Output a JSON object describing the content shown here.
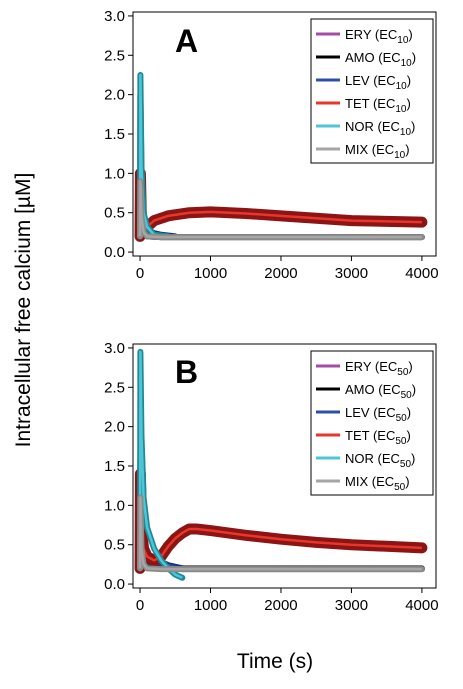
{
  "figure": {
    "ylabel": "Intracellular free calcium [µM]",
    "xlabel": "Time (s)"
  },
  "chart_data": [
    {
      "type": "line",
      "panel_label": "A",
      "xlim": [
        -100,
        4200
      ],
      "ylim": [
        -0.05,
        3.05
      ],
      "xticks": [
        0,
        1000,
        2000,
        3000,
        4000
      ],
      "yticks": [
        0.0,
        0.5,
        1.0,
        1.5,
        2.0,
        2.5,
        3.0
      ],
      "ytick_labels": [
        "0.0",
        "0.5",
        "1.0",
        "1.5",
        "2.0",
        "2.5",
        "3.0"
      ],
      "legend_position": "top-right",
      "grid": false,
      "series": [
        {
          "name": "ERY",
          "sub": "10",
          "color": "#a64ca6",
          "band": "#7a2a7a",
          "x": [
            0,
            5,
            20,
            50,
            100,
            300,
            1000,
            4000
          ],
          "y": [
            0.2,
            1.0,
            0.5,
            0.26,
            0.2,
            0.19,
            0.19,
            0.19
          ]
        },
        {
          "name": "AMO",
          "sub": "10",
          "color": "#000000",
          "band": "#333333",
          "x": [
            0,
            5,
            20,
            50,
            100,
            300,
            1000,
            4000
          ],
          "y": [
            0.2,
            1.0,
            0.5,
            0.26,
            0.2,
            0.19,
            0.19,
            0.19
          ]
        },
        {
          "name": "LEV",
          "sub": "10",
          "color": "#2f4ea8",
          "band": "#1f2f7a",
          "x": [
            0,
            5,
            20,
            50,
            100,
            200,
            300,
            500
          ],
          "y": [
            0.2,
            2.0,
            1.0,
            0.4,
            0.28,
            0.24,
            0.22,
            0.2
          ]
        },
        {
          "name": "TET",
          "sub": "10",
          "color": "#e8362a",
          "band": "#8c1414",
          "x": [
            0,
            5,
            20,
            50,
            100,
            200,
            400,
            700,
            1000,
            1500,
            2000,
            2500,
            3000,
            3500,
            4000
          ],
          "y": [
            0.2,
            1.0,
            0.4,
            0.3,
            0.32,
            0.4,
            0.46,
            0.5,
            0.51,
            0.49,
            0.46,
            0.43,
            0.4,
            0.39,
            0.38
          ]
        },
        {
          "name": "NOR",
          "sub": "10",
          "color": "#4fc6d8",
          "band": "#1f8a95",
          "x": [
            0,
            5,
            20,
            50,
            100,
            200,
            400
          ],
          "y": [
            0.2,
            2.25,
            1.1,
            0.5,
            0.32,
            0.22,
            0.2
          ]
        },
        {
          "name": "MIX",
          "sub": "10",
          "color": "#a6a6a6",
          "band": "#8a8a8a",
          "x": [
            0,
            5,
            20,
            50,
            100,
            300,
            1000,
            4000
          ],
          "y": [
            0.2,
            0.9,
            0.45,
            0.25,
            0.2,
            0.19,
            0.19,
            0.19
          ]
        }
      ]
    },
    {
      "type": "line",
      "panel_label": "B",
      "xlim": [
        -100,
        4200
      ],
      "ylim": [
        -0.05,
        3.05
      ],
      "xticks": [
        0,
        1000,
        2000,
        3000,
        4000
      ],
      "yticks": [
        0.0,
        0.5,
        1.0,
        1.5,
        2.0,
        2.5,
        3.0
      ],
      "ytick_labels": [
        "0.0",
        "0.5",
        "1.0",
        "1.5",
        "2.0",
        "2.5",
        "3.0"
      ],
      "legend_position": "top-right",
      "grid": false,
      "series": [
        {
          "name": "ERY",
          "sub": "50",
          "color": "#a64ca6",
          "band": "#7a2a7a",
          "x": [
            0,
            5,
            20,
            50,
            100,
            200,
            300,
            400,
            500,
            600,
            700,
            4000
          ],
          "y": [
            0.2,
            1.5,
            0.6,
            0.35,
            0.28,
            0.24,
            0.22,
            0.2,
            0.2,
            0.19,
            0.19,
            0.19
          ]
        },
        {
          "name": "AMO",
          "sub": "50",
          "color": "#000000",
          "band": "#333333",
          "x": [
            0,
            5,
            20,
            50,
            100,
            300,
            1000,
            4000
          ],
          "y": [
            0.2,
            1.4,
            0.5,
            0.3,
            0.22,
            0.2,
            0.2,
            0.2
          ]
        },
        {
          "name": "LEV",
          "sub": "50",
          "color": "#2f4ea8",
          "band": "#1f2f7a",
          "x": [
            0,
            5,
            20,
            50,
            100,
            200,
            300,
            400,
            600
          ],
          "y": [
            0.2,
            1.6,
            0.9,
            0.5,
            0.38,
            0.32,
            0.28,
            0.24,
            0.2
          ]
        },
        {
          "name": "TET",
          "sub": "50",
          "color": "#e8362a",
          "band": "#8c1414",
          "x": [
            0,
            5,
            20,
            50,
            100,
            200,
            300,
            400,
            500,
            600,
            700,
            800,
            1000,
            1500,
            2000,
            2500,
            3000,
            3500,
            4000
          ],
          "y": [
            0.2,
            1.4,
            0.7,
            0.45,
            0.35,
            0.3,
            0.35,
            0.48,
            0.58,
            0.65,
            0.7,
            0.7,
            0.68,
            0.62,
            0.57,
            0.53,
            0.5,
            0.48,
            0.46
          ]
        },
        {
          "name": "NOR",
          "sub": "50",
          "color": "#4fc6d8",
          "band": "#1f8a95",
          "x": [
            0,
            5,
            20,
            50,
            100,
            200,
            300,
            400,
            500,
            600
          ],
          "y": [
            0.2,
            2.95,
            1.9,
            1.1,
            0.72,
            0.45,
            0.3,
            0.2,
            0.12,
            0.08
          ]
        },
        {
          "name": "MIX",
          "sub": "50",
          "color": "#a6a6a6",
          "band": "#8a8a8a",
          "x": [
            0,
            5,
            20,
            50,
            100,
            300,
            1000,
            4000
          ],
          "y": [
            0.2,
            1.1,
            0.45,
            0.25,
            0.2,
            0.19,
            0.19,
            0.19
          ]
        }
      ]
    }
  ]
}
